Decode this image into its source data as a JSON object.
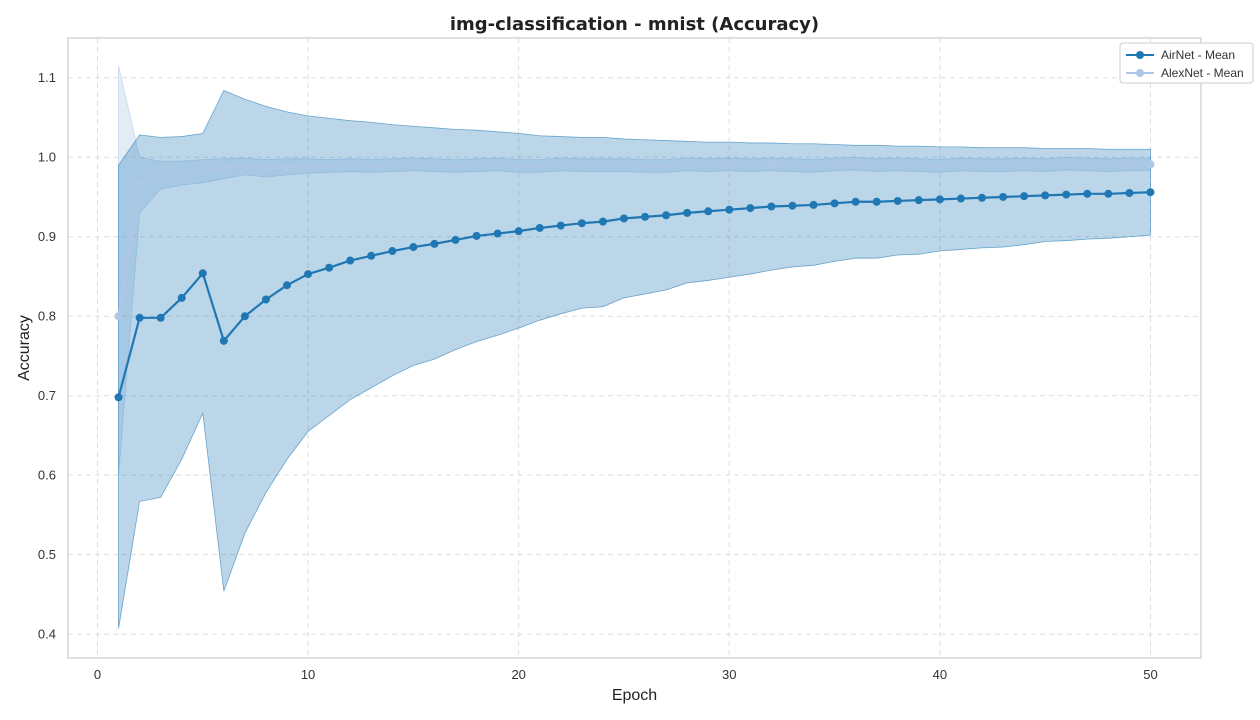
{
  "chart_data": {
    "type": "line",
    "title": "img-classification - mnist (Accuracy)",
    "xlabel": "Epoch",
    "ylabel": "Accuracy",
    "xlim": [
      -1.4,
      52.4
    ],
    "ylim": [
      0.37,
      1.15
    ],
    "xticks": [
      0,
      10,
      20,
      30,
      40,
      50
    ],
    "yticks": [
      0.4,
      0.5,
      0.6,
      0.7,
      0.8,
      0.9,
      1.0,
      1.1
    ],
    "ytick_labels": [
      "0.4",
      "0.5",
      "0.6",
      "0.7",
      "0.8",
      "0.9",
      "1.0",
      "1.1"
    ],
    "grid": true,
    "legend_position": "top-right",
    "x": [
      1,
      2,
      3,
      4,
      5,
      6,
      7,
      8,
      9,
      10,
      11,
      12,
      13,
      14,
      15,
      16,
      17,
      18,
      19,
      20,
      21,
      22,
      23,
      24,
      25,
      26,
      27,
      28,
      29,
      30,
      31,
      32,
      33,
      34,
      35,
      36,
      37,
      38,
      39,
      40,
      41,
      42,
      43,
      44,
      45,
      46,
      47,
      48,
      49,
      50
    ],
    "series": [
      {
        "name": "AlexNet - Mean",
        "color": "#aec7e8",
        "band_color": "#aec7e8",
        "band_opacity": 0.35,
        "values": [
          0.8,
          0.966,
          0.979,
          0.98,
          0.984,
          0.987,
          0.99,
          0.986,
          0.988,
          0.989,
          0.989,
          0.99,
          0.989,
          0.99,
          0.991,
          0.99,
          0.989,
          0.99,
          0.991,
          0.989,
          0.989,
          0.991,
          0.99,
          0.99,
          0.99,
          0.989,
          0.989,
          0.991,
          0.99,
          0.991,
          0.99,
          0.991,
          0.99,
          0.989,
          0.991,
          0.992,
          0.99,
          0.991,
          0.99,
          0.989,
          0.991,
          0.99,
          0.99,
          0.991,
          0.99,
          0.992,
          0.991,
          0.99,
          0.991,
          0.991
        ],
        "lower": [
          0.6,
          0.93,
          0.96,
          0.965,
          0.968,
          0.973,
          0.978,
          0.975,
          0.978,
          0.98,
          0.981,
          0.982,
          0.981,
          0.982,
          0.983,
          0.982,
          0.981,
          0.982,
          0.983,
          0.981,
          0.981,
          0.983,
          0.982,
          0.982,
          0.982,
          0.981,
          0.981,
          0.983,
          0.982,
          0.983,
          0.982,
          0.983,
          0.982,
          0.981,
          0.983,
          0.984,
          0.982,
          0.983,
          0.982,
          0.981,
          0.983,
          0.982,
          0.982,
          0.983,
          0.982,
          0.984,
          0.983,
          0.982,
          0.983,
          0.983
        ],
        "upper": [
          1.115,
          1.0,
          0.995,
          0.995,
          0.997,
          0.998,
          0.999,
          0.997,
          0.998,
          0.998,
          0.997,
          0.998,
          0.997,
          0.998,
          0.999,
          0.998,
          0.997,
          0.998,
          0.999,
          0.997,
          0.997,
          0.999,
          0.998,
          0.998,
          0.998,
          0.997,
          0.997,
          0.999,
          0.998,
          0.999,
          0.998,
          0.999,
          0.998,
          0.997,
          0.999,
          1.0,
          0.998,
          0.999,
          0.998,
          0.997,
          0.999,
          0.998,
          0.998,
          0.999,
          0.998,
          1.0,
          0.999,
          0.998,
          0.999,
          0.999
        ]
      },
      {
        "name": "AirNet - Mean",
        "color": "#1f77b4",
        "band_color": "#1f77b4",
        "band_opacity": 0.3,
        "values": [
          0.698,
          0.798,
          0.798,
          0.823,
          0.854,
          0.769,
          0.8,
          0.821,
          0.839,
          0.853,
          0.861,
          0.87,
          0.876,
          0.882,
          0.887,
          0.891,
          0.896,
          0.901,
          0.904,
          0.907,
          0.911,
          0.914,
          0.917,
          0.919,
          0.923,
          0.925,
          0.927,
          0.93,
          0.932,
          0.934,
          0.936,
          0.938,
          0.939,
          0.94,
          0.942,
          0.944,
          0.944,
          0.945,
          0.946,
          0.947,
          0.948,
          0.949,
          0.95,
          0.951,
          0.952,
          0.953,
          0.954,
          0.954,
          0.955,
          0.956
        ],
        "lower": [
          0.407,
          0.567,
          0.572,
          0.62,
          0.678,
          0.454,
          0.527,
          0.578,
          0.62,
          0.655,
          0.675,
          0.695,
          0.71,
          0.725,
          0.738,
          0.746,
          0.758,
          0.768,
          0.776,
          0.785,
          0.795,
          0.803,
          0.81,
          0.812,
          0.823,
          0.828,
          0.833,
          0.842,
          0.845,
          0.849,
          0.853,
          0.858,
          0.862,
          0.864,
          0.869,
          0.873,
          0.873,
          0.877,
          0.878,
          0.882,
          0.884,
          0.886,
          0.887,
          0.89,
          0.894,
          0.895,
          0.897,
          0.898,
          0.9,
          0.902
        ],
        "upper": [
          0.99,
          1.028,
          1.025,
          1.026,
          1.03,
          1.084,
          1.073,
          1.064,
          1.057,
          1.052,
          1.049,
          1.046,
          1.044,
          1.041,
          1.039,
          1.037,
          1.035,
          1.034,
          1.032,
          1.03,
          1.027,
          1.026,
          1.025,
          1.025,
          1.023,
          1.022,
          1.021,
          1.02,
          1.019,
          1.019,
          1.018,
          1.018,
          1.017,
          1.017,
          1.016,
          1.015,
          1.015,
          1.014,
          1.014,
          1.013,
          1.013,
          1.012,
          1.012,
          1.012,
          1.011,
          1.011,
          1.011,
          1.01,
          1.01,
          1.01
        ]
      }
    ],
    "legend": [
      {
        "label": "AirNet - Mean",
        "color": "#1f77b4"
      },
      {
        "label": "AlexNet - Mean",
        "color": "#aec7e8"
      }
    ]
  }
}
